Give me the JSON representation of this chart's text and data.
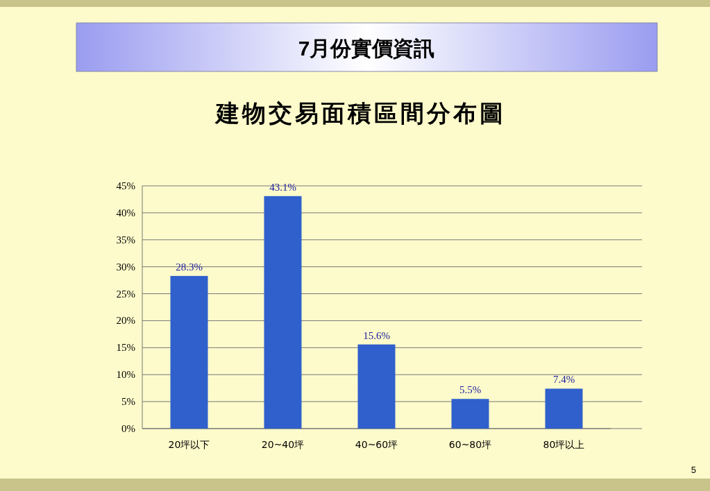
{
  "chart_data": {
    "type": "bar",
    "title": "7月份實價資訊",
    "subtitle": "建物交易面積區間分布圖",
    "categories": [
      "20坪以下",
      "20~40坪",
      "40~60坪",
      "60~80坪",
      "80坪以上"
    ],
    "values": [
      28.3,
      43.1,
      15.6,
      5.5,
      7.4
    ],
    "color": "#3060cc",
    "ylim": [
      0,
      45
    ],
    "yticks": [
      {
        "value": 0,
        "label": "0%"
      },
      {
        "value": 5,
        "label": "5%"
      },
      {
        "value": 10,
        "label": "10%"
      },
      {
        "value": 15,
        "label": "15%"
      },
      {
        "value": 20,
        "label": "20%"
      },
      {
        "value": 25,
        "label": "25%"
      },
      {
        "value": 30,
        "label": "30%"
      },
      {
        "value": 35,
        "label": "35%"
      },
      {
        "value": 40,
        "label": "40%"
      },
      {
        "value": 45,
        "label": "45%"
      }
    ],
    "grid": "y",
    "data_labels": true,
    "value_labels": [
      "28.3%",
      "43.1%",
      "15.6%",
      "5.5%",
      "7.4%"
    ],
    "annotations": [
      "5"
    ]
  }
}
